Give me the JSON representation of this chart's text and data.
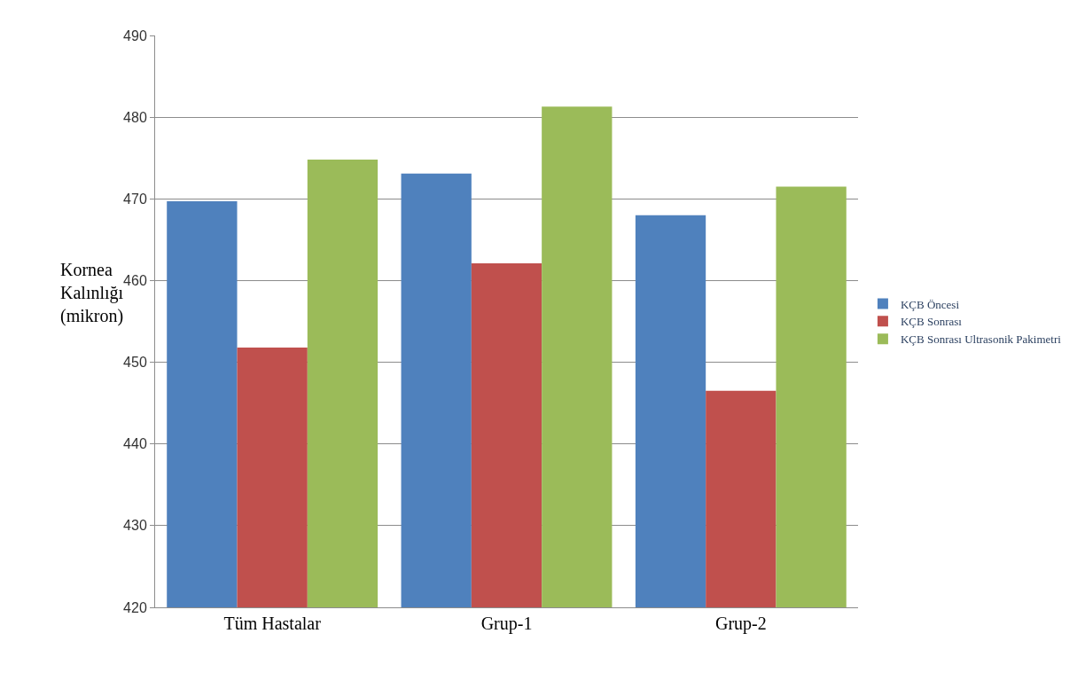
{
  "chart_data": {
    "type": "bar",
    "ylabel": "Kornea Kalınlığı (mikron)",
    "categories": [
      "Tüm Hastalar",
      "Grup-1",
      "Grup-2"
    ],
    "series": [
      {
        "name": "KÇB Öncesi",
        "color": "#4f81bd",
        "values": [
          469.7,
          473.1,
          468.0
        ]
      },
      {
        "name": "KÇB Sonrası",
        "color": "#c0504d",
        "values": [
          451.8,
          462.1,
          446.5
        ]
      },
      {
        "name": "KÇB Sonrası Ultrasonik Pakimetri",
        "color": "#9bbb59",
        "values": [
          474.8,
          481.3,
          471.5
        ]
      }
    ],
    "ylim": [
      420,
      490
    ],
    "yticks": [
      420,
      430,
      440,
      450,
      460,
      470,
      480,
      490
    ],
    "grid": "y",
    "legend": "right"
  }
}
